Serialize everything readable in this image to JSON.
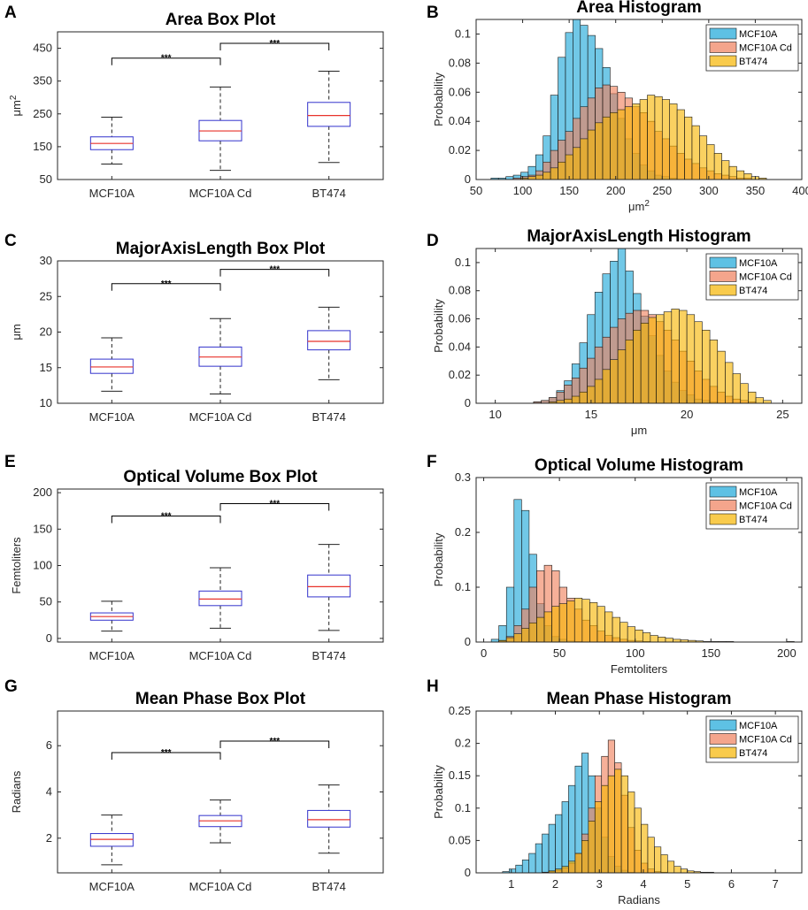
{
  "colors": {
    "MCF10A": "#1aa6d9",
    "MCF10A Cd": "#f07f5b",
    "BT474": "#f7b500",
    "box": "#3333cc",
    "median": "#e8332b"
  },
  "chart_data": [
    {
      "panel": "A",
      "type": "box",
      "title": "Area Box Plot",
      "ylabel": "μm²",
      "ylim": [
        50,
        500
      ],
      "yticks": [
        50,
        150,
        250,
        350,
        450
      ],
      "categories": [
        "MCF10A",
        "MCF10A Cd",
        "BT474"
      ],
      "boxes": [
        {
          "whisker_low": 97,
          "q1": 141,
          "median": 160,
          "q3": 180,
          "whisker_high": 240
        },
        {
          "whisker_low": 78,
          "q1": 168,
          "median": 198,
          "q3": 230,
          "whisker_high": 332
        },
        {
          "whisker_low": 102,
          "q1": 212,
          "median": 245,
          "q3": 285,
          "whisker_high": 380
        }
      ],
      "significance": [
        {
          "from": 0,
          "to": 1,
          "y": 420,
          "label": "***"
        },
        {
          "from": 1,
          "to": 2,
          "y": 465,
          "label": "***"
        }
      ]
    },
    {
      "panel": "B",
      "type": "histogram",
      "title": "Area Histogram",
      "xlabel": "μm²",
      "ylabel": "Probability",
      "xlim": [
        50,
        400
      ],
      "ylim": [
        0,
        0.11
      ],
      "xticks": [
        50,
        100,
        150,
        200,
        250,
        300,
        350,
        400
      ],
      "yticks": [
        0,
        0.02,
        0.04,
        0.06,
        0.08,
        0.1
      ],
      "legend": [
        "MCF10A",
        "MCF10A Cd",
        "BT474"
      ],
      "bin_start": 50,
      "bin_width": 8,
      "series": [
        {
          "name": "MCF10A",
          "values": [
            0,
            0,
            0.001,
            0.001,
            0.002,
            0.003,
            0.005,
            0.009,
            0.017,
            0.03,
            0.058,
            0.084,
            0.101,
            0.111,
            0.106,
            0.099,
            0.09,
            0.077,
            0.059,
            0.042,
            0.028,
            0.018,
            0.01,
            0.006,
            0.003,
            0.002,
            0.001,
            0,
            0,
            0,
            0,
            0,
            0,
            0,
            0,
            0,
            0,
            0,
            0,
            0,
            0,
            0,
            0,
            0
          ]
        },
        {
          "name": "MCF10A Cd",
          "values": [
            0,
            0,
            0,
            0,
            0,
            0.001,
            0.002,
            0.003,
            0.006,
            0.012,
            0.02,
            0.027,
            0.033,
            0.042,
            0.05,
            0.056,
            0.063,
            0.065,
            0.064,
            0.06,
            0.056,
            0.05,
            0.046,
            0.04,
            0.033,
            0.028,
            0.023,
            0.018,
            0.014,
            0.011,
            0.008,
            0.006,
            0.004,
            0.003,
            0.002,
            0.001,
            0.001,
            0,
            0,
            0,
            0,
            0,
            0,
            0
          ]
        },
        {
          "name": "BT474",
          "values": [
            0,
            0,
            0,
            0,
            0,
            0,
            0.001,
            0.002,
            0.003,
            0.005,
            0.008,
            0.012,
            0.017,
            0.022,
            0.028,
            0.034,
            0.039,
            0.043,
            0.046,
            0.048,
            0.05,
            0.052,
            0.055,
            0.058,
            0.057,
            0.055,
            0.052,
            0.048,
            0.043,
            0.037,
            0.03,
            0.024,
            0.018,
            0.013,
            0.009,
            0.006,
            0.004,
            0.002,
            0.001,
            0,
            0,
            0,
            0,
            0
          ]
        }
      ]
    },
    {
      "panel": "C",
      "type": "box",
      "title": "MajorAxisLength Box Plot",
      "ylabel": "μm",
      "ylim": [
        10,
        30
      ],
      "yticks": [
        10,
        15,
        20,
        25,
        30
      ],
      "categories": [
        "MCF10A",
        "MCF10A Cd",
        "BT474"
      ],
      "boxes": [
        {
          "whisker_low": 11.7,
          "q1": 14.2,
          "median": 15.1,
          "q3": 16.2,
          "whisker_high": 19.2
        },
        {
          "whisker_low": 11.3,
          "q1": 15.2,
          "median": 16.5,
          "q3": 17.9,
          "whisker_high": 21.9
        },
        {
          "whisker_low": 13.3,
          "q1": 17.5,
          "median": 18.7,
          "q3": 20.2,
          "whisker_high": 23.5
        }
      ],
      "significance": [
        {
          "from": 0,
          "to": 1,
          "y": 26.8,
          "label": "***"
        },
        {
          "from": 1,
          "to": 2,
          "y": 28.8,
          "label": "***"
        }
      ]
    },
    {
      "panel": "D",
      "type": "histogram",
      "title": "MajorAxisLength Histogram",
      "xlabel": "μm",
      "ylabel": "Probability",
      "xlim": [
        9,
        26
      ],
      "ylim": [
        0,
        0.11
      ],
      "xticks": [
        10,
        15,
        20,
        25
      ],
      "yticks": [
        0,
        0.02,
        0.04,
        0.06,
        0.08,
        0.1
      ],
      "legend": [
        "MCF10A",
        "MCF10A Cd",
        "BT474"
      ],
      "bin_start": 10,
      "bin_width": 0.4,
      "series": [
        {
          "name": "MCF10A",
          "values": [
            0,
            0,
            0,
            0,
            0,
            0.001,
            0.002,
            0.004,
            0.009,
            0.016,
            0.028,
            0.043,
            0.063,
            0.079,
            0.092,
            0.101,
            0.11,
            0.094,
            0.078,
            0.062,
            0.048,
            0.034,
            0.023,
            0.015,
            0.009,
            0.006,
            0.003,
            0.002,
            0.001,
            0,
            0,
            0,
            0,
            0,
            0,
            0
          ]
        },
        {
          "name": "MCF10A Cd",
          "values": [
            0,
            0,
            0,
            0,
            0,
            0.001,
            0.002,
            0.004,
            0.008,
            0.013,
            0.018,
            0.025,
            0.032,
            0.04,
            0.047,
            0.054,
            0.06,
            0.064,
            0.066,
            0.066,
            0.063,
            0.058,
            0.052,
            0.045,
            0.037,
            0.03,
            0.023,
            0.017,
            0.012,
            0.008,
            0.005,
            0.003,
            0.002,
            0.001,
            0,
            0
          ]
        },
        {
          "name": "BT474",
          "values": [
            0,
            0,
            0,
            0,
            0,
            0,
            0,
            0.001,
            0.002,
            0.003,
            0.005,
            0.008,
            0.012,
            0.017,
            0.024,
            0.031,
            0.038,
            0.045,
            0.052,
            0.057,
            0.061,
            0.063,
            0.065,
            0.067,
            0.066,
            0.063,
            0.058,
            0.052,
            0.045,
            0.037,
            0.029,
            0.021,
            0.014,
            0.008,
            0.004,
            0.002
          ]
        }
      ]
    },
    {
      "panel": "E",
      "type": "box",
      "title": "Optical Volume Box Plot",
      "ylabel": "Femtoliters",
      "ylim": [
        -5,
        205
      ],
      "yticks": [
        0,
        50,
        100,
        150,
        200
      ],
      "categories": [
        "MCF10A",
        "MCF10A Cd",
        "BT474"
      ],
      "boxes": [
        {
          "whisker_low": 10,
          "q1": 25,
          "median": 30,
          "q3": 35,
          "whisker_high": 51
        },
        {
          "whisker_low": 14,
          "q1": 45,
          "median": 54,
          "q3": 65,
          "whisker_high": 97
        },
        {
          "whisker_low": 11,
          "q1": 57,
          "median": 71,
          "q3": 87,
          "whisker_high": 129
        }
      ],
      "significance": [
        {
          "from": 0,
          "to": 1,
          "y": 168,
          "label": "***"
        },
        {
          "from": 1,
          "to": 2,
          "y": 185,
          "label": "***"
        }
      ]
    },
    {
      "panel": "F",
      "type": "histogram",
      "title": "Optical Volume Histogram",
      "xlabel": "Femtoliters",
      "ylabel": "Probability",
      "xlim": [
        -5,
        210
      ],
      "ylim": [
        0,
        0.3
      ],
      "xticks": [
        0,
        50,
        100,
        150,
        200
      ],
      "yticks": [
        0,
        0.1,
        0.2,
        0.3
      ],
      "legend": [
        "MCF10A",
        "MCF10A Cd",
        "BT474"
      ],
      "bin_start": 0,
      "bin_width": 5,
      "series": [
        {
          "name": "MCF10A",
          "values": [
            0,
            0.005,
            0.03,
            0.1,
            0.26,
            0.24,
            0.16,
            0.07,
            0.03,
            0.01,
            0.005,
            0.002,
            0.001,
            0,
            0,
            0,
            0,
            0,
            0,
            0,
            0,
            0,
            0,
            0,
            0,
            0,
            0,
            0,
            0,
            0,
            0,
            0,
            0,
            0,
            0,
            0,
            0,
            0,
            0,
            0,
            0
          ]
        },
        {
          "name": "MCF10A Cd",
          "values": [
            0,
            0,
            0.002,
            0.01,
            0.03,
            0.06,
            0.1,
            0.13,
            0.14,
            0.13,
            0.1,
            0.08,
            0.06,
            0.04,
            0.03,
            0.02,
            0.012,
            0.008,
            0.005,
            0.003,
            0.002,
            0.001,
            0,
            0,
            0,
            0,
            0,
            0,
            0,
            0,
            0,
            0,
            0,
            0,
            0,
            0,
            0,
            0,
            0,
            0,
            0
          ]
        },
        {
          "name": "BT474",
          "values": [
            0,
            0,
            0.003,
            0.008,
            0.015,
            0.025,
            0.035,
            0.045,
            0.055,
            0.065,
            0.07,
            0.075,
            0.08,
            0.078,
            0.072,
            0.065,
            0.055,
            0.045,
            0.036,
            0.028,
            0.022,
            0.017,
            0.012,
            0.009,
            0.007,
            0.005,
            0.004,
            0.003,
            0.002,
            0.001,
            0.001,
            0.001,
            0.001,
            0,
            0,
            0,
            0,
            0,
            0,
            0,
            0.001
          ]
        }
      ]
    },
    {
      "panel": "G",
      "type": "box",
      "title": "Mean Phase Box Plot",
      "ylabel": "Radians",
      "ylim": [
        0.5,
        7.5
      ],
      "yticks": [
        2,
        4,
        6
      ],
      "categories": [
        "MCF10A",
        "MCF10A Cd",
        "BT474"
      ],
      "boxes": [
        {
          "whisker_low": 0.85,
          "q1": 1.65,
          "median": 1.95,
          "q3": 2.2,
          "whisker_high": 3.0
        },
        {
          "whisker_low": 1.8,
          "q1": 2.5,
          "median": 2.75,
          "q3": 2.98,
          "whisker_high": 3.65
        },
        {
          "whisker_low": 1.35,
          "q1": 2.48,
          "median": 2.8,
          "q3": 3.2,
          "whisker_high": 4.3
        }
      ],
      "significance": [
        {
          "from": 0,
          "to": 1,
          "y": 5.7,
          "label": "***"
        },
        {
          "from": 1,
          "to": 2,
          "y": 6.2,
          "label": "***"
        }
      ]
    },
    {
      "panel": "H",
      "type": "histogram",
      "title": "Mean Phase Histogram",
      "xlabel": "Radians",
      "ylabel": "Probability",
      "xlim": [
        0.2,
        7.6
      ],
      "ylim": [
        0,
        0.25
      ],
      "xticks": [
        1,
        2,
        3,
        4,
        5,
        6,
        7
      ],
      "yticks": [
        0,
        0.05,
        0.1,
        0.15,
        0.2,
        0.25
      ],
      "legend": [
        "MCF10A",
        "MCF10A Cd",
        "BT474"
      ],
      "bin_start": 0.5,
      "bin_width": 0.15,
      "series": [
        {
          "name": "MCF10A",
          "values": [
            0,
            0,
            0.002,
            0.006,
            0.012,
            0.02,
            0.03,
            0.045,
            0.06,
            0.075,
            0.09,
            0.11,
            0.135,
            0.165,
            0.185,
            0.15,
            0.1,
            0.055,
            0.025,
            0.01,
            0.004,
            0.001,
            0,
            0,
            0,
            0,
            0,
            0,
            0,
            0,
            0,
            0,
            0,
            0,
            0,
            0,
            0,
            0,
            0,
            0,
            0,
            0,
            0,
            0,
            0,
            0
          ]
        },
        {
          "name": "MCF10A Cd",
          "values": [
            0,
            0,
            0,
            0,
            0,
            0,
            0,
            0,
            0.001,
            0.002,
            0.004,
            0.008,
            0.015,
            0.03,
            0.06,
            0.1,
            0.15,
            0.18,
            0.205,
            0.17,
            0.12,
            0.07,
            0.035,
            0.015,
            0.006,
            0.002,
            0.001,
            0,
            0,
            0,
            0,
            0,
            0,
            0,
            0,
            0,
            0,
            0,
            0,
            0,
            0,
            0,
            0,
            0,
            0,
            0
          ]
        },
        {
          "name": "BT474",
          "values": [
            0,
            0,
            0,
            0,
            0,
            0,
            0,
            0,
            0.001,
            0.003,
            0.006,
            0.01,
            0.018,
            0.03,
            0.05,
            0.08,
            0.11,
            0.135,
            0.15,
            0.16,
            0.15,
            0.125,
            0.1,
            0.075,
            0.055,
            0.04,
            0.028,
            0.018,
            0.01,
            0.006,
            0.003,
            0.002,
            0.001,
            0.001,
            0,
            0,
            0,
            0,
            0,
            0,
            0,
            0,
            0,
            0,
            0,
            0
          ]
        }
      ]
    }
  ]
}
